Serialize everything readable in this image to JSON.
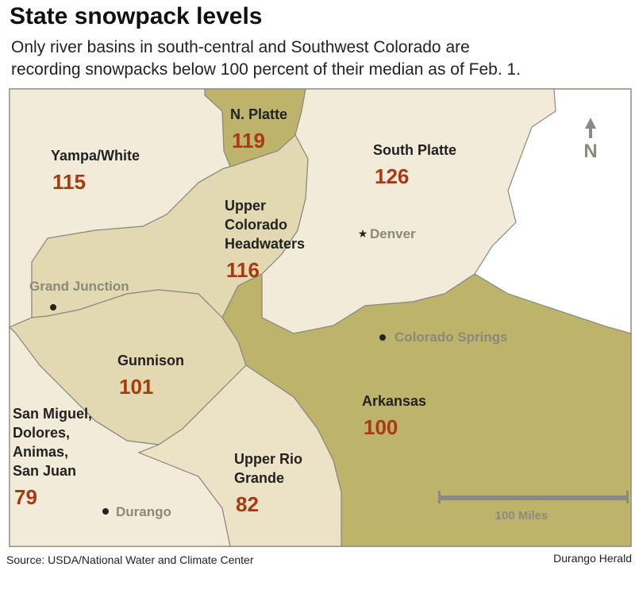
{
  "header": {
    "title": "State snowpack levels",
    "subtitle": [
      "Only river basins in south-central and Southwest Colorado are",
      "recording snowpacks below 100 percent of their median as of Feb. 1."
    ]
  },
  "basins": [
    {
      "name": [
        "N. Platte"
      ],
      "value": 119,
      "color": "#bdb36b"
    },
    {
      "name": [
        "Yampa/White"
      ],
      "value": 115,
      "color": "#f3ebd9"
    },
    {
      "name": [
        "South Platte"
      ],
      "value": 126,
      "color": "#f3ebd9"
    },
    {
      "name": [
        "Upper",
        "Colorado",
        "Headwaters"
      ],
      "value": 116,
      "color": "#e2d8b1"
    },
    {
      "name": [
        "Gunnison"
      ],
      "value": 101,
      "color": "#e2d8b1"
    },
    {
      "name": [
        "Arkansas"
      ],
      "value": 100,
      "color": "#bdb36b"
    },
    {
      "name": [
        "San Miguel,",
        "Dolores,",
        "Animas,",
        "San Juan"
      ],
      "value": 79,
      "color": "#f3ebd9"
    },
    {
      "name": [
        "Upper Rio",
        "Grande"
      ],
      "value": 82,
      "color": "#ece2c6"
    }
  ],
  "cities": [
    "Denver",
    "Grand Junction",
    "Colorado Springs",
    "Durango"
  ],
  "north": "N",
  "scale": "100 Miles",
  "footer": {
    "source": "Source: USDA/National Water and Climate Center",
    "credit": "Durango Herald"
  }
}
